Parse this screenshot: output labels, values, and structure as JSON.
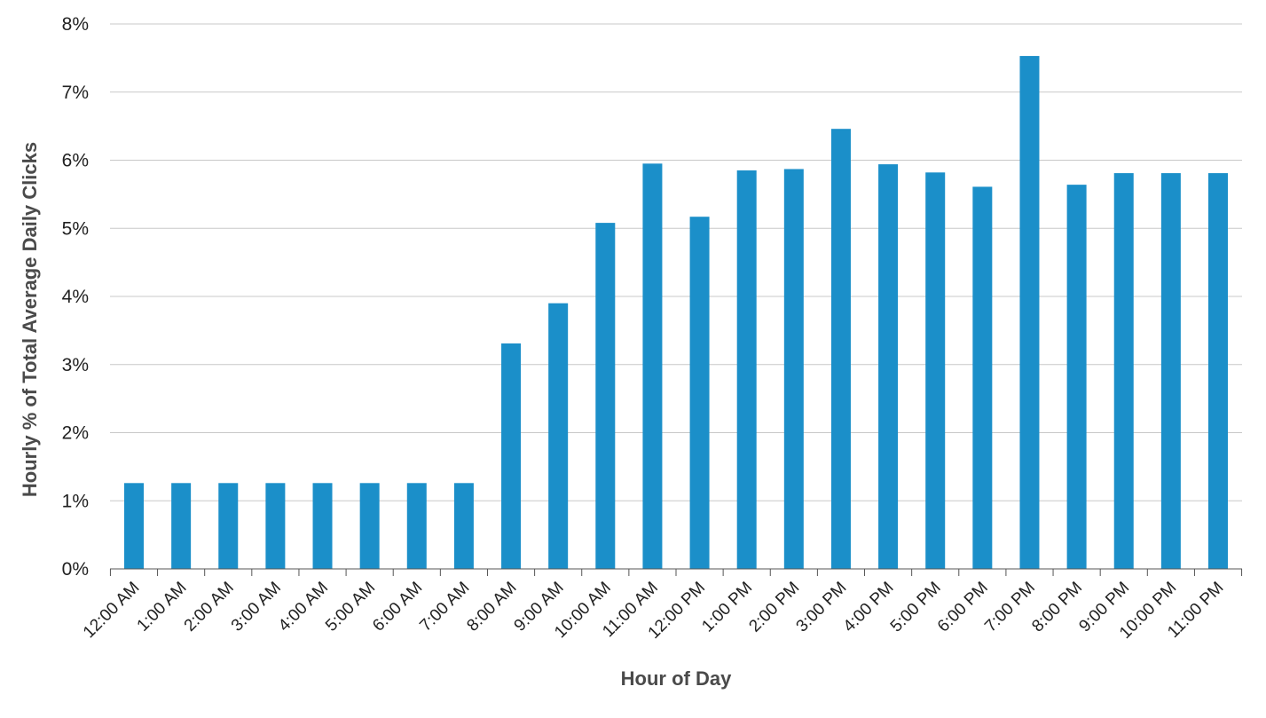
{
  "chart_data": {
    "type": "bar",
    "title": "",
    "xlabel": "Hour of Day",
    "ylabel": "Hourly % of Total Average Daily Clicks",
    "ylim": [
      0,
      8
    ],
    "y_ticks": [
      "0%",
      "1%",
      "2%",
      "3%",
      "4%",
      "5%",
      "6%",
      "7%",
      "8%"
    ],
    "grid": "horizontal",
    "bar_color": "#1b8fc9",
    "categories": [
      "12:00 AM",
      "1:00 AM",
      "2:00 AM",
      "3:00 AM",
      "4:00 AM",
      "5:00 AM",
      "6:00 AM",
      "7:00 AM",
      "8:00 AM",
      "9:00 AM",
      "10:00 AM",
      "11:00 AM",
      "12:00 PM",
      "1:00 PM",
      "2:00 PM",
      "3:00 PM",
      "4:00 PM",
      "5:00 PM",
      "6:00 PM",
      "7:00 PM",
      "8:00 PM",
      "9:00 PM",
      "10:00 PM",
      "11:00 PM"
    ],
    "values": [
      1.26,
      1.26,
      1.26,
      1.26,
      1.26,
      1.26,
      1.26,
      1.26,
      3.31,
      3.9,
      5.08,
      5.95,
      5.17,
      5.85,
      5.87,
      6.46,
      5.94,
      5.82,
      5.61,
      7.53,
      5.64,
      5.81,
      5.81,
      5.81
    ]
  }
}
